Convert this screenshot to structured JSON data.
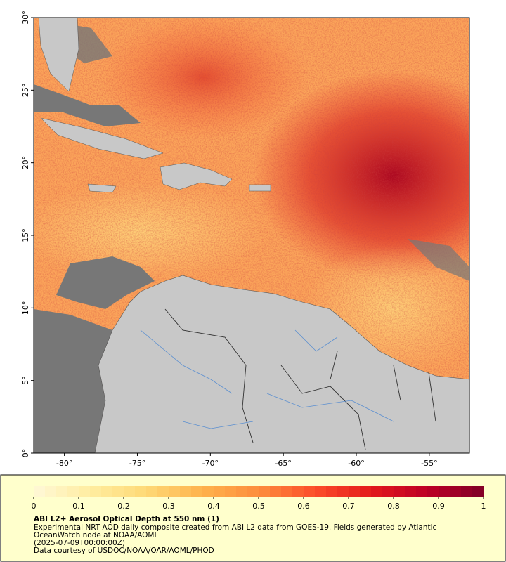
{
  "map": {
    "xlim": [
      -82.1,
      -52.25
    ],
    "ylim": [
      0,
      30
    ],
    "xticks": [
      {
        "value": -80,
        "label": "-80°"
      },
      {
        "value": -75,
        "label": "-75°"
      },
      {
        "value": -70,
        "label": "-70°"
      },
      {
        "value": -65,
        "label": "-65°"
      },
      {
        "value": -60,
        "label": "-60°"
      },
      {
        "value": -55,
        "label": "-55°"
      }
    ],
    "yticks": [
      {
        "value": 0,
        "label": "0°"
      },
      {
        "value": 5,
        "label": "5°"
      },
      {
        "value": 10,
        "label": "10°"
      },
      {
        "value": 15,
        "label": "15°"
      },
      {
        "value": 20,
        "label": "20°"
      },
      {
        "value": 25,
        "label": "25°"
      },
      {
        "value": 30,
        "label": "30°"
      }
    ]
  },
  "colorbar": {
    "lim": [
      0,
      1
    ],
    "ticks": [
      0,
      0.1,
      0.2,
      0.3,
      0.4,
      0.5,
      0.6,
      0.7,
      0.8,
      0.9,
      1
    ],
    "colors": [
      "#fff8d8",
      "#ffeda0",
      "#fed976",
      "#feb24c",
      "#fd8d3c",
      "#fc4e2a",
      "#e31a1c",
      "#bd0026",
      "#800026"
    ]
  },
  "caption": {
    "title": "ABI L2+ Aerosol Optical Depth at 550 nm (1)",
    "lines": [
      "Experimental NRT AOD daily composite created from ABI L2 data from GOES-19. Fields generated by Atlantic",
      "OceanWatch node at NOAA/AOML",
      "(2025-07-09T00:00:00Z)",
      "Data courtesy of USDOC/NOAA/OAR/AOML/PHOD"
    ]
  }
}
